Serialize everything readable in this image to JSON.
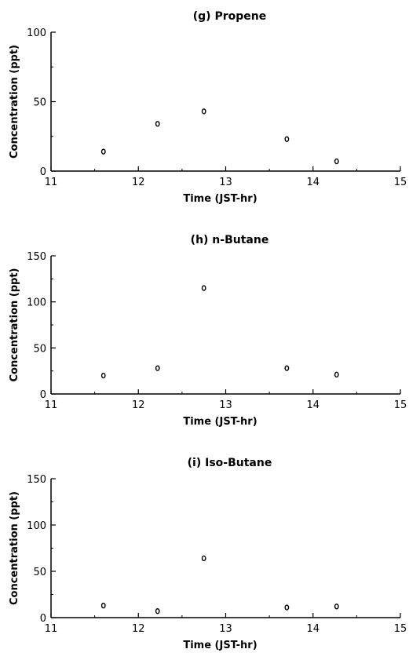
{
  "chart_data": [
    {
      "type": "scatter",
      "title": "(g)  Propene",
      "xlabel": "Time   (JST-hr)",
      "ylabel": "Concentration   (ppt)",
      "xlim": [
        11,
        15
      ],
      "ylim": [
        0,
        100
      ],
      "xticks": [
        "11",
        "12",
        "13",
        "14",
        "15"
      ],
      "yticks": [
        "0",
        "50",
        "100"
      ],
      "grid": false,
      "x": [
        11.6,
        12.22,
        12.75,
        13.7,
        14.27
      ],
      "y": [
        14,
        34,
        43,
        23,
        7
      ]
    },
    {
      "type": "scatter",
      "title": "(h)  n-Butane",
      "xlabel": "Time   (JST-hr)",
      "ylabel": "Concentration   (ppt)",
      "xlim": [
        11,
        15
      ],
      "ylim": [
        0,
        150
      ],
      "xticks": [
        "11",
        "12",
        "13",
        "14",
        "15"
      ],
      "yticks": [
        "0",
        "50",
        "100",
        "150"
      ],
      "grid": false,
      "x": [
        11.6,
        12.22,
        12.75,
        13.7,
        14.27
      ],
      "y": [
        20,
        28,
        115,
        28,
        21
      ]
    },
    {
      "type": "scatter",
      "title": "(i)  Iso-Butane",
      "xlabel": "Time   (JST-hr)",
      "ylabel": "Concentration   (ppt)",
      "xlim": [
        11,
        15
      ],
      "ylim": [
        0,
        150
      ],
      "xticks": [
        "11",
        "12",
        "13",
        "14",
        "15"
      ],
      "yticks": [
        "0",
        "50",
        "100",
        "150"
      ],
      "grid": false,
      "x": [
        11.6,
        12.22,
        12.75,
        13.7,
        14.27
      ],
      "y": [
        13,
        7,
        64,
        11,
        12
      ]
    }
  ]
}
